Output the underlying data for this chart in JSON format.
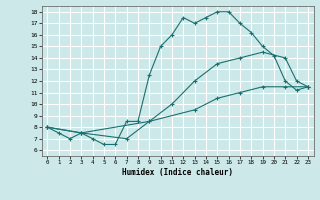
{
  "title": "",
  "xlabel": "Humidex (Indice chaleur)",
  "bg_color": "#cce8e8",
  "grid_color": "#ffffff",
  "line_color": "#1a7070",
  "xlim": [
    -0.5,
    23.5
  ],
  "ylim": [
    5.5,
    18.5
  ],
  "xticks": [
    0,
    1,
    2,
    3,
    4,
    5,
    6,
    7,
    8,
    9,
    10,
    11,
    12,
    13,
    14,
    15,
    16,
    17,
    18,
    19,
    20,
    21,
    22,
    23
  ],
  "yticks": [
    6,
    7,
    8,
    9,
    10,
    11,
    12,
    13,
    14,
    15,
    16,
    17,
    18
  ],
  "line1_x": [
    0,
    1,
    2,
    3,
    4,
    5,
    6,
    7,
    8,
    9,
    10,
    11,
    12,
    13,
    14,
    15,
    16,
    17,
    18,
    19,
    20,
    21,
    22,
    23
  ],
  "line1_y": [
    8,
    7.5,
    7,
    7.5,
    7,
    6.5,
    6.5,
    8.5,
    8.5,
    12.5,
    15,
    16,
    17.5,
    17,
    17.5,
    18,
    18,
    17,
    16.2,
    15,
    14.2,
    12,
    11.2,
    11.5
  ],
  "line2_x": [
    0,
    3,
    7,
    9,
    11,
    13,
    15,
    17,
    19,
    21,
    22,
    23
  ],
  "line2_y": [
    8,
    7.5,
    7,
    8.5,
    10,
    12,
    13.5,
    14,
    14.5,
    14,
    12,
    11.5
  ],
  "line3_x": [
    0,
    3,
    9,
    13,
    15,
    17,
    19,
    21,
    23
  ],
  "line3_y": [
    8,
    7.5,
    8.5,
    9.5,
    10.5,
    11,
    11.5,
    11.5,
    11.5
  ]
}
